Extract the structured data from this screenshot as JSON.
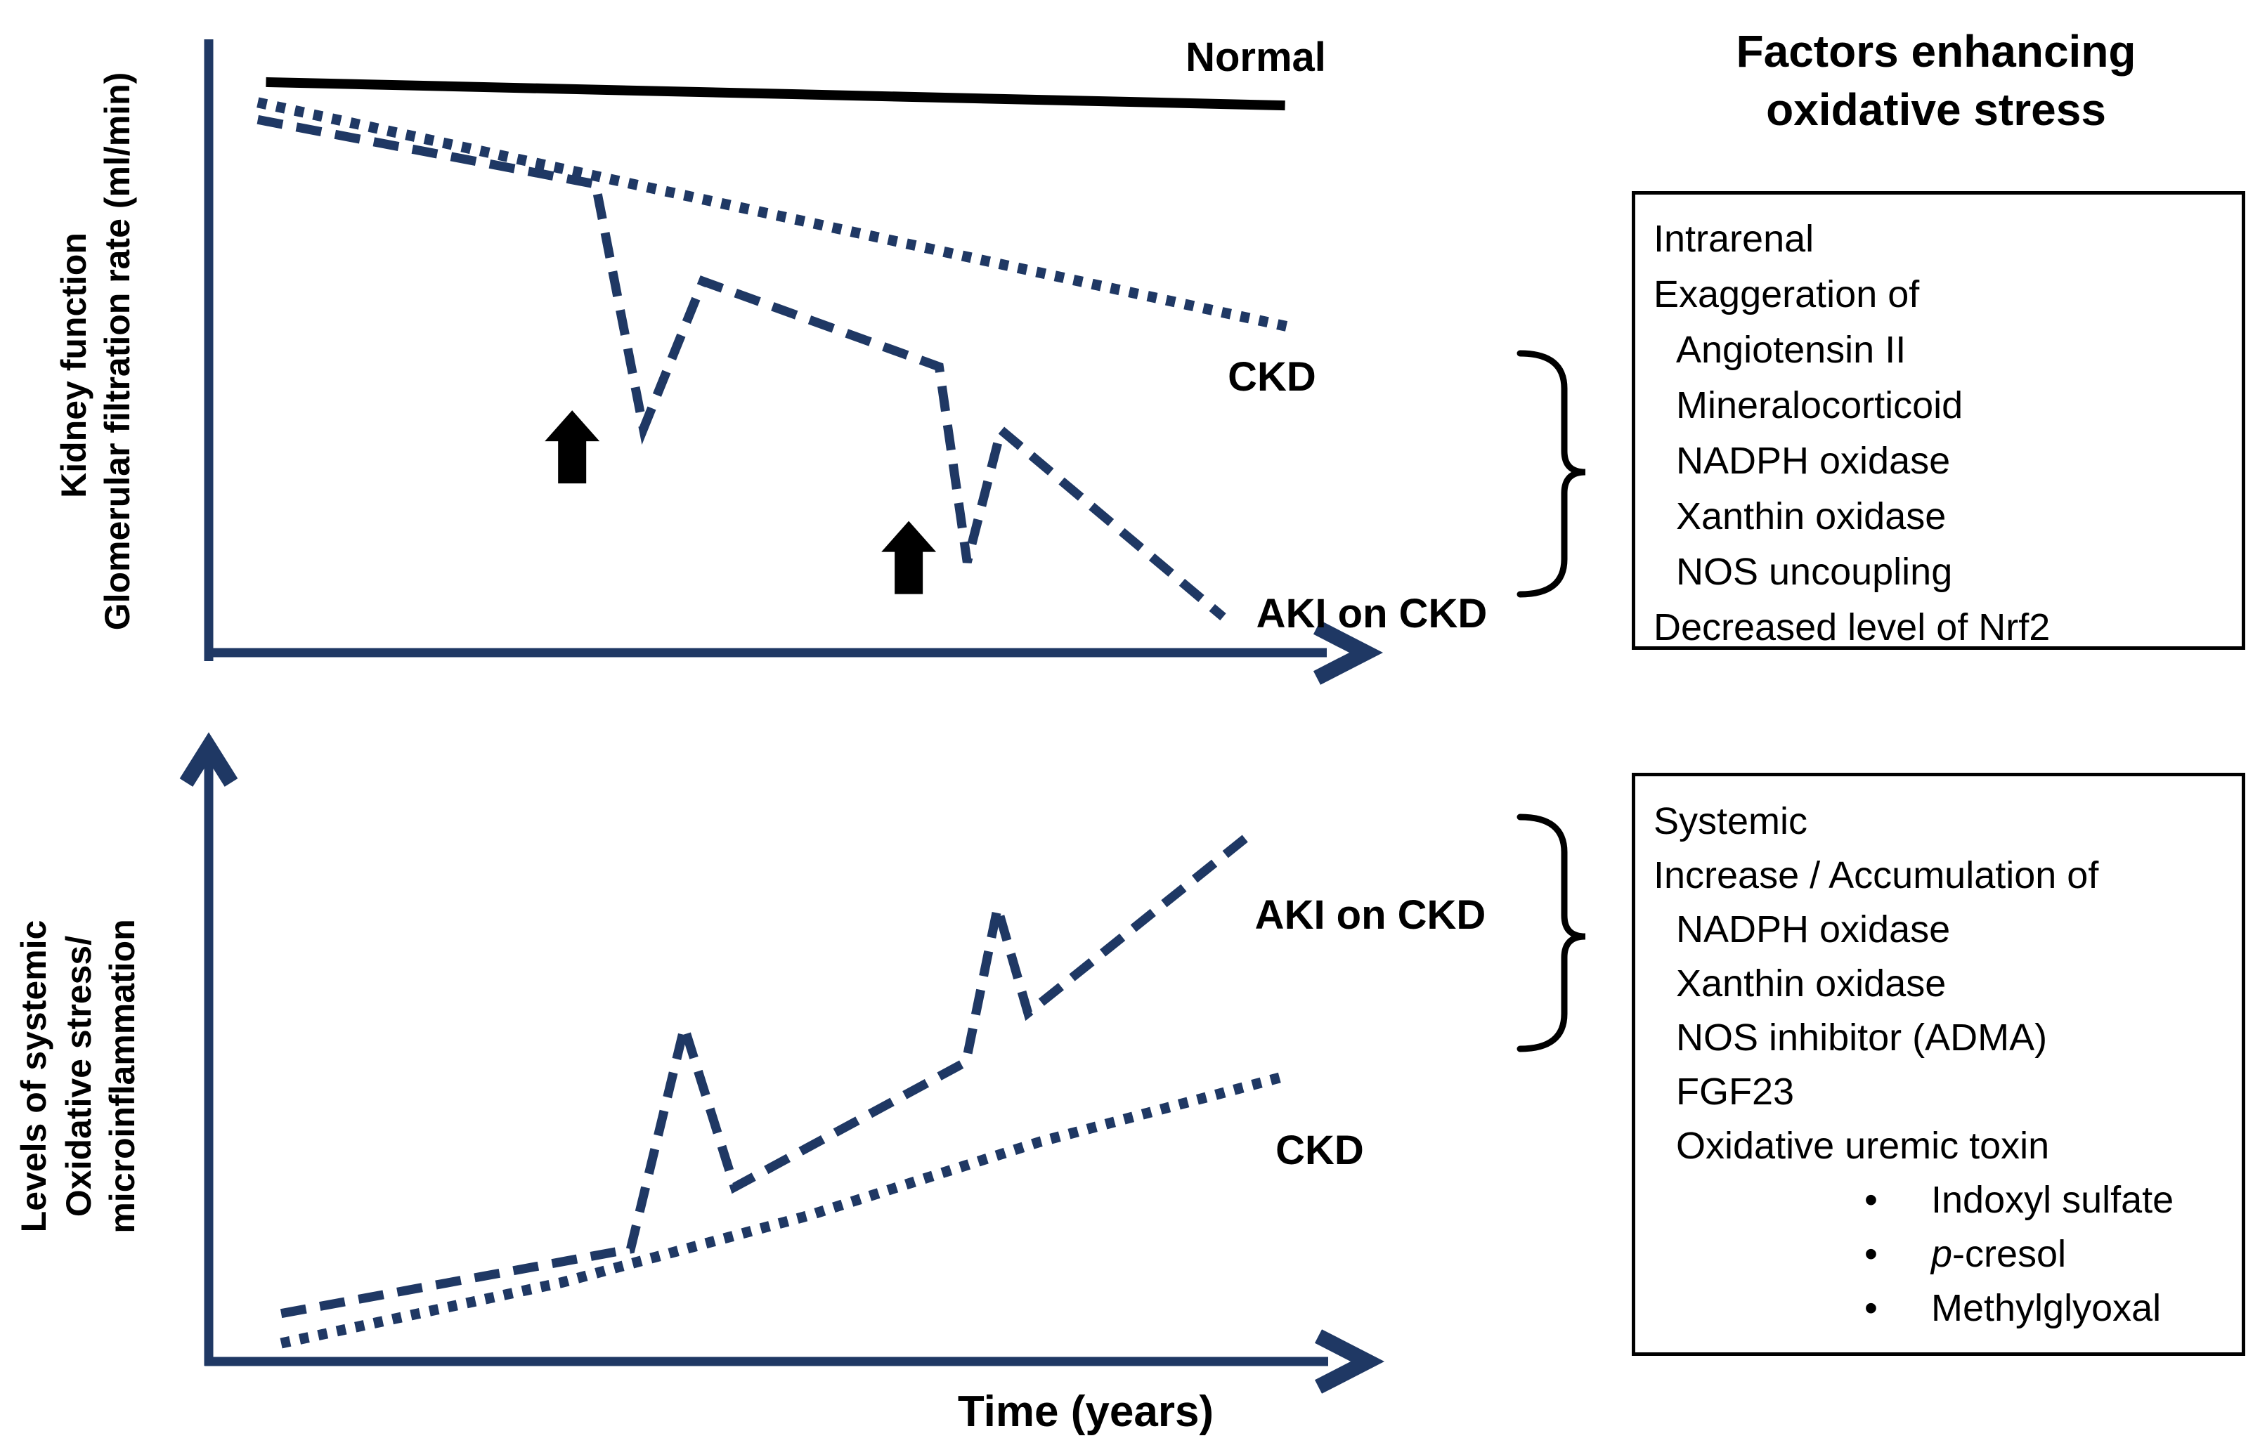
{
  "palette": {
    "navy": "#1f3864",
    "black": "#000000",
    "background": "#ffffff"
  },
  "panel_title": {
    "line1": "Factors enhancing",
    "line2": "oxidative stress"
  },
  "chart_data": {
    "type": "line",
    "xlabel": "Time (years)",
    "axis_note": "conceptual schematic, no tick labels; x and y in relative units 0-100",
    "charts": [
      {
        "frame": "kidney",
        "ylabel_lines": [
          "Kidney function",
          "Glomerular filtration rate (ml/min)"
        ],
        "xlim": [
          0,
          100
        ],
        "ylim": [
          0,
          100
        ],
        "grid": false,
        "series": [
          {
            "name": "Normal",
            "style": "solid",
            "color": "#000000",
            "points": [
              [
                4.9,
                93.5
              ],
              [
                92.1,
                89.7
              ]
            ]
          },
          {
            "name": "CKD",
            "style": "dotted",
            "color": "#1f3864",
            "points": [
              [
                4.2,
                90.2
              ],
              [
                92.4,
                53.7
              ]
            ]
          },
          {
            "name": "AKI on CKD",
            "style": "dashed",
            "color": "#1f3864",
            "points": [
              [
                4.2,
                87.4
              ],
              [
                33.1,
                76.9
              ],
              [
                37.2,
                37.1
              ],
              [
                42.3,
                61.1
              ],
              [
                62.5,
                47.2
              ],
              [
                64.9,
                15.4
              ],
              [
                67.8,
                36.9
              ],
              [
                86.8,
                6.5
              ]
            ]
          }
        ],
        "annotations": [
          {
            "shape": "block-arrow-up",
            "x": 31.1,
            "y_tip": 40.1
          },
          {
            "shape": "block-arrow-up",
            "x": 59.9,
            "y_tip": 22.1
          }
        ]
      },
      {
        "frame": "systemic",
        "ylabel_lines": [
          "Levels of systemic",
          "Oxidative stress/",
          "microinflammation"
        ],
        "xlim": [
          0,
          100
        ],
        "ylim": [
          0,
          100
        ],
        "grid": false,
        "series": [
          {
            "name": "AKI on CKD",
            "style": "dashed",
            "color": "#1f3864",
            "points": [
              [
                6.2,
                9.1
              ],
              [
                36.1,
                19.5
              ],
              [
                40.7,
                55.3
              ],
              [
                45.0,
                29.5
              ],
              [
                64.8,
                49.7
              ],
              [
                67.5,
                74.6
              ],
              [
                70.1,
                57.6
              ],
              [
                89.1,
                86.4
              ]
            ]
          },
          {
            "name": "CKD",
            "style": "dotted",
            "color": "#1f3864",
            "points": [
              [
                6.2,
                4.3
              ],
              [
                30.2,
                14.1
              ],
              [
                51.3,
                24.9
              ],
              [
                71.1,
                36.8
              ],
              [
                91.7,
                47.2
              ]
            ]
          }
        ],
        "annotations": []
      }
    ]
  },
  "factors": {
    "bullet_char": "•",
    "box1": {
      "lines": [
        {
          "text": "Intrarenal"
        },
        {
          "text": "Exaggeration of"
        },
        {
          "text": "Angiotensin II"
        },
        {
          "text": "Mineralocorticoid"
        },
        {
          "text": "NADPH oxidase"
        },
        {
          "text": "Xanthin oxidase"
        },
        {
          "text": "NOS uncoupling"
        },
        {
          "text": "Decreased level of Nrf2"
        }
      ]
    },
    "box2": {
      "lines": [
        {
          "text": "Systemic"
        },
        {
          "text": "Increase / Accumulation of"
        },
        {
          "text": "NADPH oxidase"
        },
        {
          "text": "Xanthin oxidase"
        },
        {
          "text": "NOS inhibitor (ADMA)"
        },
        {
          "text": "FGF23"
        },
        {
          "text": "Oxidative uremic toxin"
        },
        {
          "text": "Indoxyl sulfate"
        },
        {
          "italic_prefix": "p",
          "text": "-cresol"
        },
        {
          "text": "Methylglyoxal"
        }
      ]
    }
  }
}
